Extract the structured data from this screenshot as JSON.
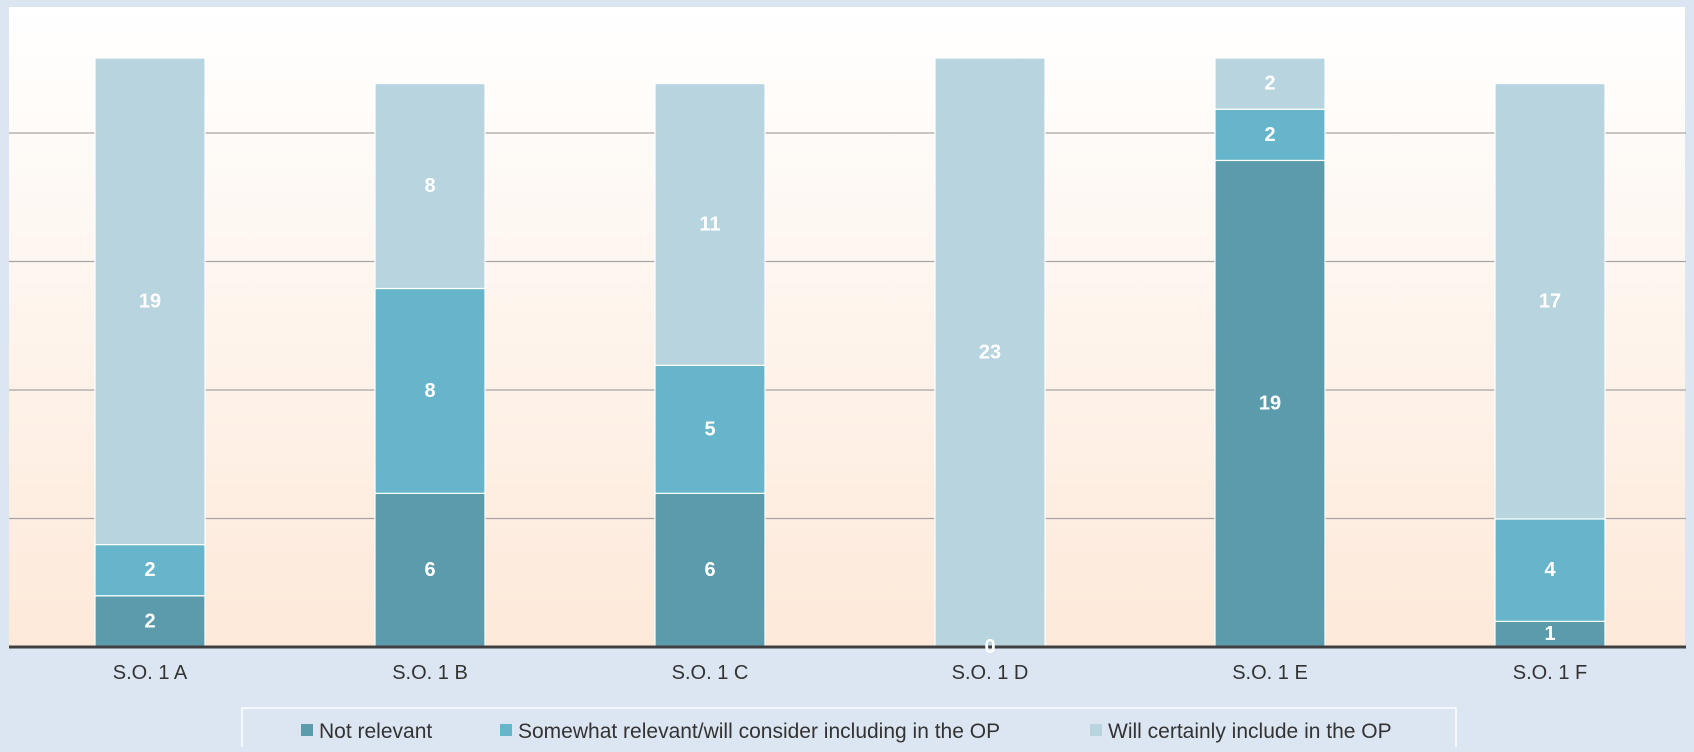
{
  "chart_data": {
    "type": "bar",
    "stacked": true,
    "categories": [
      "S.O. 1 A",
      "S.O. 1 B",
      "S.O. 1 C",
      "S.O. 1 D",
      "S.O. 1 E",
      "S.O. 1 F"
    ],
    "series": [
      {
        "name": "Not relevant",
        "values": [
          2,
          6,
          6,
          0,
          19,
          1
        ],
        "color": "#5b9bab"
      },
      {
        "name": "Somewhat relevant/will consider including in the OP",
        "values": [
          2,
          8,
          5,
          0,
          2,
          4
        ],
        "color": "#67b5ca"
      },
      {
        "name": "Will certainly include in the OP",
        "values": [
          19,
          8,
          11,
          23,
          2,
          17
        ],
        "color": "#b7d4df"
      }
    ],
    "ylim": [
      0,
      23
    ],
    "gridlines": true,
    "legend_position": "bottom",
    "title": "",
    "xlabel": "",
    "ylabel": ""
  }
}
